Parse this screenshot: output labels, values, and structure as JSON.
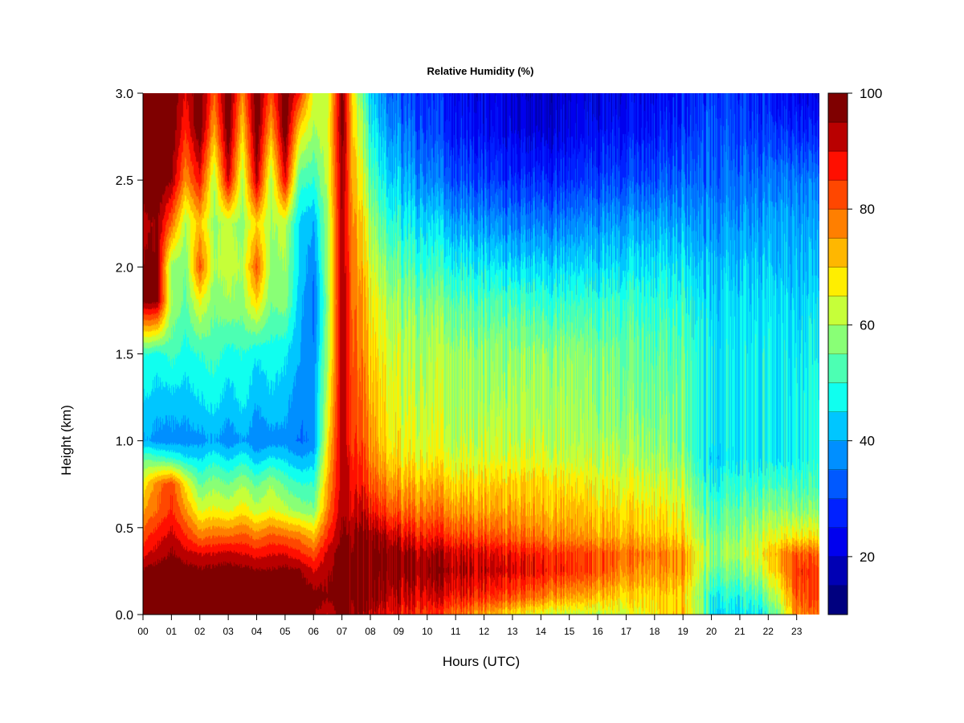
{
  "chart_data": {
    "type": "heatmap",
    "title": "Relative Humidity (%)",
    "xlabel": "Hours (UTC)",
    "ylabel": "Height (km)",
    "x_ticks": [
      "00",
      "01",
      "02",
      "03",
      "04",
      "05",
      "06",
      "07",
      "08",
      "09",
      "10",
      "11",
      "12",
      "13",
      "14",
      "15",
      "16",
      "17",
      "18",
      "19",
      "20",
      "21",
      "22",
      "23"
    ],
    "x_range": [
      0,
      23.8
    ],
    "y_ticks": [
      "0.0",
      "0.5",
      "1.0",
      "1.5",
      "2.0",
      "2.5",
      "3.0"
    ],
    "ylim": [
      0,
      3.0
    ],
    "colorbar": {
      "range": [
        10,
        100
      ],
      "step": 5,
      "tick_values": [
        20,
        40,
        60,
        80,
        100
      ],
      "tick_labels": [
        "20",
        "40",
        "60",
        "80",
        "100"
      ],
      "colors": [
        "#00007F",
        "#0000B4",
        "#0000EE",
        "#0021FF",
        "#0059FF",
        "#008FFF",
        "#00C6FF",
        "#10FFEF",
        "#4CFFB3",
        "#89FF76",
        "#C6FF39",
        "#FFEE00",
        "#FFB700",
        "#FF7F00",
        "#FF4700",
        "#FF0F00",
        "#B90000",
        "#7F0000"
      ]
    },
    "grid": false,
    "columns_x": [
      0,
      0.5,
      1,
      1.5,
      2,
      2.5,
      3,
      3.5,
      4,
      4.5,
      5,
      5.5,
      6,
      6.5,
      7,
      7.5,
      8,
      8.5,
      9,
      10,
      11,
      12,
      13,
      14,
      15,
      16,
      17,
      18,
      19,
      19.6,
      20,
      21,
      21.8,
      22.5,
      23,
      23.8
    ],
    "rows_y": [
      0,
      0.1,
      0.25,
      0.35,
      0.45,
      0.6,
      0.75,
      0.9,
      1.0,
      1.2,
      1.5,
      1.8,
      2.0,
      2.25,
      2.5,
      2.8,
      3.0
    ],
    "rh_grid": [
      [
        97,
        98,
        98,
        97,
        97,
        97,
        97,
        96,
        96,
        96,
        96,
        96,
        96,
        90,
        98,
        95,
        93,
        90,
        88,
        84,
        80,
        74,
        68,
        64,
        62,
        62,
        65,
        68,
        72,
        60,
        45,
        45,
        46,
        60,
        78,
        80
      ],
      [
        98,
        98,
        98,
        98,
        98,
        98,
        98,
        98,
        98,
        98,
        98,
        98,
        98,
        96,
        99,
        99,
        97,
        94,
        92,
        90,
        88,
        85,
        82,
        78,
        74,
        72,
        70,
        70,
        70,
        58,
        48,
        48,
        52,
        66,
        82,
        84
      ],
      [
        96,
        98,
        99,
        98,
        96,
        97,
        98,
        97,
        96,
        96,
        97,
        96,
        90,
        94,
        98,
        99,
        99,
        98,
        96,
        95,
        94,
        92,
        90,
        88,
        85,
        82,
        78,
        76,
        76,
        62,
        55,
        56,
        62,
        74,
        86,
        84
      ],
      [
        88,
        92,
        96,
        92,
        90,
        90,
        92,
        90,
        88,
        90,
        90,
        86,
        82,
        92,
        98,
        99,
        99,
        98,
        96,
        93,
        92,
        90,
        88,
        86,
        84,
        82,
        80,
        78,
        76,
        64,
        58,
        60,
        66,
        76,
        82,
        80
      ],
      [
        82,
        88,
        92,
        86,
        78,
        80,
        80,
        82,
        78,
        82,
        80,
        78,
        72,
        86,
        96,
        96,
        96,
        94,
        90,
        86,
        84,
        82,
        80,
        78,
        76,
        74,
        74,
        72,
        70,
        60,
        56,
        58,
        62,
        66,
        68,
        68
      ],
      [
        74,
        80,
        86,
        76,
        64,
        66,
        64,
        68,
        62,
        66,
        62,
        58,
        56,
        78,
        94,
        92,
        88,
        84,
        80,
        78,
        76,
        74,
        74,
        72,
        72,
        70,
        70,
        68,
        66,
        56,
        52,
        54,
        56,
        58,
        58,
        58
      ],
      [
        66,
        78,
        84,
        68,
        54,
        58,
        55,
        60,
        54,
        60,
        54,
        50,
        50,
        74,
        94,
        88,
        82,
        78,
        74,
        72,
        70,
        70,
        70,
        70,
        68,
        66,
        66,
        64,
        62,
        52,
        48,
        50,
        50,
        52,
        52,
        52
      ],
      [
        54,
        52,
        50,
        46,
        44,
        48,
        44,
        48,
        42,
        46,
        44,
        40,
        42,
        70,
        94,
        86,
        78,
        72,
        68,
        66,
        64,
        64,
        64,
        64,
        62,
        62,
        62,
        60,
        58,
        48,
        44,
        46,
        46,
        46,
        48,
        50
      ],
      [
        40,
        38,
        38,
        38,
        38,
        40,
        37,
        40,
        36,
        38,
        38,
        34,
        36,
        68,
        94,
        84,
        76,
        70,
        66,
        64,
        62,
        62,
        62,
        62,
        60,
        60,
        60,
        58,
        56,
        48,
        46,
        46,
        46,
        46,
        48,
        50
      ],
      [
        44,
        42,
        42,
        42,
        44,
        46,
        42,
        46,
        40,
        44,
        42,
        36,
        38,
        64,
        94,
        82,
        74,
        68,
        64,
        62,
        60,
        60,
        60,
        60,
        60,
        58,
        58,
        56,
        56,
        48,
        46,
        46,
        46,
        46,
        48,
        50
      ],
      [
        50,
        48,
        52,
        48,
        50,
        52,
        48,
        50,
        46,
        48,
        46,
        40,
        36,
        60,
        94,
        80,
        70,
        66,
        62,
        60,
        60,
        58,
        58,
        58,
        58,
        56,
        56,
        54,
        54,
        48,
        46,
        46,
        46,
        46,
        46,
        48
      ],
      [
        96,
        96,
        60,
        54,
        66,
        56,
        60,
        58,
        70,
        56,
        58,
        42,
        34,
        58,
        94,
        78,
        68,
        62,
        58,
        56,
        54,
        52,
        52,
        50,
        50,
        50,
        52,
        50,
        50,
        46,
        44,
        44,
        44,
        44,
        44,
        46
      ],
      [
        96,
        96,
        58,
        56,
        82,
        60,
        62,
        60,
        82,
        58,
        60,
        44,
        36,
        60,
        94,
        76,
        64,
        58,
        54,
        50,
        48,
        46,
        44,
        44,
        44,
        44,
        46,
        46,
        46,
        42,
        42,
        42,
        42,
        42,
        42,
        42
      ],
      [
        92,
        96,
        80,
        60,
        72,
        58,
        62,
        58,
        70,
        60,
        62,
        44,
        40,
        60,
        94,
        74,
        60,
        52,
        48,
        44,
        40,
        38,
        36,
        36,
        36,
        38,
        40,
        40,
        40,
        38,
        38,
        38,
        38,
        40,
        40,
        40
      ],
      [
        100,
        100,
        96,
        76,
        88,
        60,
        92,
        60,
        94,
        60,
        90,
        52,
        50,
        62,
        96,
        70,
        54,
        46,
        42,
        36,
        32,
        30,
        28,
        28,
        28,
        30,
        32,
        32,
        34,
        34,
        34,
        34,
        34,
        36,
        36,
        36
      ],
      [
        100,
        100,
        100,
        86,
        100,
        74,
        100,
        70,
        100,
        74,
        100,
        70,
        60,
        64,
        98,
        66,
        48,
        40,
        36,
        30,
        26,
        24,
        22,
        20,
        22,
        24,
        26,
        26,
        28,
        30,
        32,
        30,
        28,
        28,
        28,
        26
      ],
      [
        100,
        100,
        100,
        90,
        100,
        80,
        100,
        76,
        100,
        82,
        100,
        86,
        64,
        62,
        98,
        62,
        44,
        36,
        32,
        28,
        24,
        22,
        20,
        18,
        20,
        22,
        24,
        24,
        26,
        28,
        30,
        28,
        26,
        24,
        24,
        22
      ]
    ]
  }
}
